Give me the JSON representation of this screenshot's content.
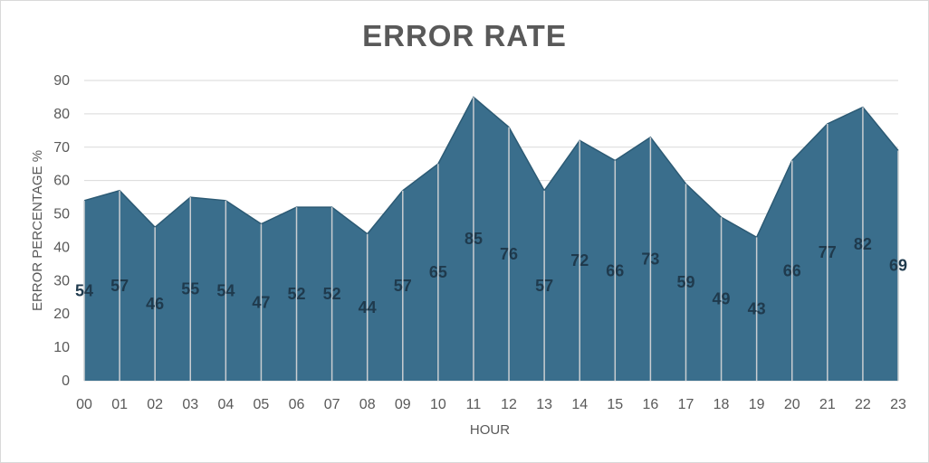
{
  "chart_data": {
    "type": "area",
    "title": "ERROR RATE",
    "xlabel": "HOUR",
    "ylabel": "ERROR PERCENTAGE %",
    "categories": [
      "00",
      "01",
      "02",
      "03",
      "04",
      "05",
      "06",
      "07",
      "08",
      "09",
      "10",
      "11",
      "12",
      "13",
      "14",
      "15",
      "16",
      "17",
      "18",
      "19",
      "20",
      "21",
      "22",
      "23"
    ],
    "values": [
      54,
      57,
      46,
      55,
      54,
      47,
      52,
      52,
      44,
      57,
      65,
      85,
      76,
      57,
      72,
      66,
      73,
      59,
      49,
      43,
      66,
      77,
      82,
      69
    ],
    "ylim": [
      0,
      90
    ],
    "yticks": [
      0,
      10,
      20,
      30,
      40,
      50,
      60,
      70,
      80,
      90
    ],
    "grid": true,
    "legend": "none",
    "colors": {
      "area": "#3a6e8c",
      "data_label": "#1f3a4d",
      "gridline": "#d9d9d9"
    }
  }
}
